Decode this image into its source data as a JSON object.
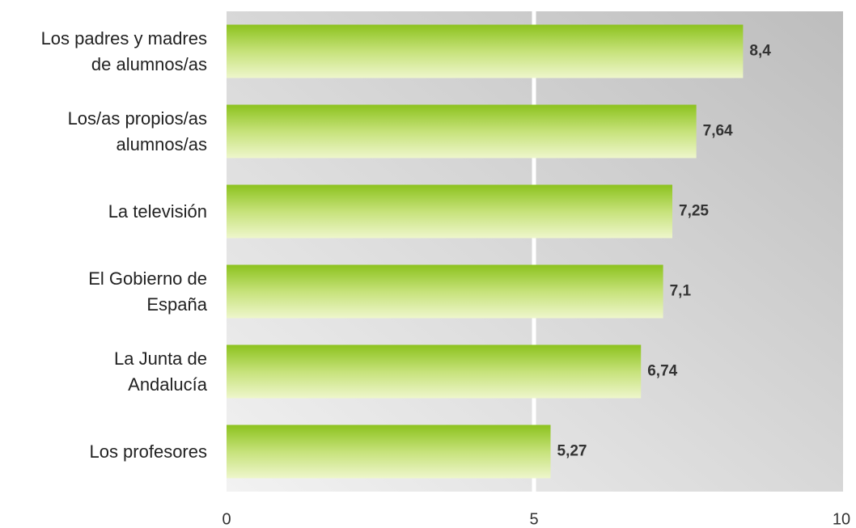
{
  "chart_data": {
    "type": "hbar",
    "categories": [
      "Los padres y madres\nde alumnos/as",
      "Los/as propios/as\nalumnos/as",
      "La televisión",
      "El Gobierno de\nEspaña",
      "La Junta de\nAndalucía",
      "Los profesores"
    ],
    "values": [
      8.4,
      7.64,
      7.25,
      7.1,
      6.74,
      5.27
    ],
    "value_labels": [
      "8,4",
      "7,64",
      "7,25",
      "7,1",
      "6,74",
      "5,27"
    ],
    "xlim": [
      0,
      10
    ],
    "xticks": [
      0,
      5,
      10
    ],
    "grid": true,
    "color": "#8cc21e"
  }
}
